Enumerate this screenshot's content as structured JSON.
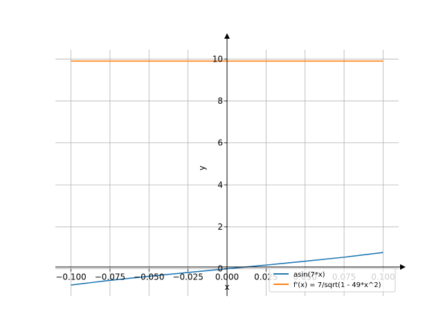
{
  "chart_data": {
    "type": "line",
    "xlabel": "x",
    "ylabel": "y",
    "xlim": [
      -0.11,
      0.11
    ],
    "ylim": [
      -1.3,
      10.9
    ],
    "grid": true,
    "legend_position": "lower-right",
    "x_ticks": [
      -0.1,
      -0.075,
      -0.05,
      -0.025,
      0.0,
      0.025,
      0.05,
      0.075,
      0.1
    ],
    "x_tick_labels": [
      "−0.100",
      "−0.075",
      "−0.050",
      "−0.025",
      "0.000",
      "0.025",
      "0.050",
      "0.075",
      "0.100"
    ],
    "y_ticks": [
      0,
      2,
      4,
      6,
      8,
      10
    ],
    "y_tick_labels": [
      "0",
      "2",
      "4",
      "6",
      "8",
      "10"
    ],
    "series": [
      {
        "name": "asin(7*x)",
        "color": "#1f77b4",
        "x": [
          -0.1,
          -0.075,
          -0.05,
          -0.025,
          0.0,
          0.025,
          0.05,
          0.075,
          0.1
        ],
        "y": [
          -0.775,
          -0.551,
          -0.358,
          -0.176,
          0.0,
          0.176,
          0.358,
          0.551,
          0.775
        ]
      },
      {
        "name": "f'(x) = 7/sqrt(1 - 49*x^2)",
        "color": "#ff7f0e",
        "x": [
          -0.1,
          0.1
        ],
        "y": [
          9.9,
          9.9
        ]
      }
    ]
  }
}
